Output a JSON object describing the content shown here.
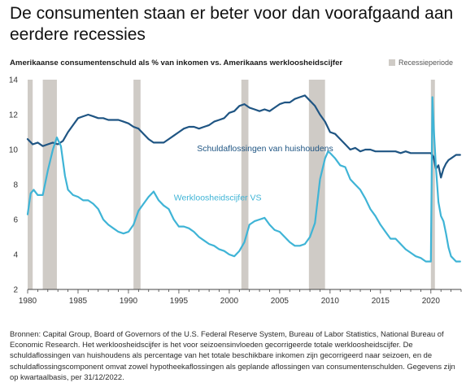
{
  "title": "De consumenten staan er beter voor dan voorafgaand aan eerdere recessies",
  "colors": {
    "debt_line": "#1f5583",
    "unemployment_line": "#3fb4d6",
    "recession": "#cfcbc6",
    "axis": "#444444"
  },
  "chart_data": {
    "type": "line",
    "title": "Amerikaanse consumentenschuld als % van inkomen vs. Amerikaans werkloosheidscijfer",
    "legend": [
      {
        "label": "Recessieperiode",
        "position": "top-right"
      }
    ],
    "xlim": [
      1980,
      2023
    ],
    "ylim": [
      2,
      14
    ],
    "x_ticks": [
      "1980",
      "1985",
      "1990",
      "1995",
      "2000",
      "2005",
      "2010",
      "2015",
      "2020"
    ],
    "y_ticks": [
      "2",
      "4",
      "6",
      "8",
      "10",
      "12",
      "14"
    ],
    "grid": false,
    "recessions": [
      [
        1980.0,
        1980.5
      ],
      [
        1981.5,
        1982.9
      ],
      [
        1990.5,
        1991.2
      ],
      [
        2001.2,
        2001.9
      ],
      [
        2007.9,
        2009.5
      ],
      [
        2020.0,
        2020.4
      ]
    ],
    "series": [
      {
        "name": "Schuldaflossingen van huishoudens",
        "label": "Schuldaflossingen van huishoudens",
        "x": [
          1980.0,
          1980.5,
          1981.0,
          1981.5,
          1982.0,
          1982.5,
          1983.0,
          1983.5,
          1984.0,
          1984.5,
          1985.0,
          1985.5,
          1986.0,
          1986.5,
          1987.0,
          1987.5,
          1988.0,
          1988.5,
          1989.0,
          1989.5,
          1990.0,
          1990.5,
          1991.0,
          1991.5,
          1992.0,
          1992.5,
          1993.0,
          1993.5,
          1994.0,
          1994.5,
          1995.0,
          1995.5,
          1996.0,
          1996.5,
          1997.0,
          1997.5,
          1998.0,
          1998.5,
          1999.0,
          1999.5,
          2000.0,
          2000.5,
          2001.0,
          2001.5,
          2002.0,
          2002.5,
          2003.0,
          2003.5,
          2004.0,
          2004.5,
          2005.0,
          2005.5,
          2006.0,
          2006.5,
          2007.0,
          2007.5,
          2008.0,
          2008.5,
          2009.0,
          2009.5,
          2010.0,
          2010.5,
          2011.0,
          2011.5,
          2012.0,
          2012.5,
          2013.0,
          2013.5,
          2014.0,
          2014.5,
          2015.0,
          2015.5,
          2016.0,
          2016.5,
          2017.0,
          2017.5,
          2018.0,
          2018.5,
          2019.0,
          2019.5,
          2020.0,
          2020.25,
          2020.5,
          2020.75,
          2021.0,
          2021.25,
          2021.5,
          2021.75,
          2022.0,
          2022.5,
          2022.9
        ],
        "values": [
          10.6,
          10.3,
          10.4,
          10.2,
          10.3,
          10.4,
          10.3,
          10.5,
          11.0,
          11.4,
          11.8,
          11.9,
          12.0,
          11.9,
          11.8,
          11.8,
          11.7,
          11.7,
          11.7,
          11.6,
          11.5,
          11.3,
          11.2,
          10.9,
          10.6,
          10.4,
          10.4,
          10.4,
          10.6,
          10.8,
          11.0,
          11.2,
          11.3,
          11.3,
          11.2,
          11.3,
          11.4,
          11.6,
          11.7,
          11.8,
          12.1,
          12.2,
          12.5,
          12.6,
          12.4,
          12.3,
          12.2,
          12.3,
          12.2,
          12.4,
          12.6,
          12.7,
          12.7,
          12.9,
          13.0,
          13.1,
          12.8,
          12.5,
          12.0,
          11.6,
          11.0,
          10.9,
          10.6,
          10.3,
          10.0,
          10.1,
          9.9,
          10.0,
          10.0,
          9.9,
          9.9,
          9.9,
          9.9,
          9.9,
          9.8,
          9.9,
          9.8,
          9.8,
          9.8,
          9.8,
          9.8,
          9.6,
          8.9,
          9.1,
          8.4,
          8.9,
          9.2,
          9.4,
          9.5,
          9.7,
          9.7
        ]
      },
      {
        "name": "Werkloosheidscijfer VS",
        "label": "Werkloosheidscijfer VS",
        "x": [
          1980.0,
          1980.3,
          1980.6,
          1981.0,
          1981.5,
          1982.0,
          1982.5,
          1982.9,
          1983.3,
          1983.7,
          1984.0,
          1984.5,
          1985.0,
          1985.5,
          1986.0,
          1986.5,
          1987.0,
          1987.5,
          1988.0,
          1988.5,
          1989.0,
          1989.5,
          1990.0,
          1990.5,
          1991.0,
          1991.5,
          1992.0,
          1992.5,
          1993.0,
          1993.5,
          1994.0,
          1994.5,
          1995.0,
          1995.5,
          1996.0,
          1996.5,
          1997.0,
          1997.5,
          1998.0,
          1998.5,
          1999.0,
          1999.5,
          2000.0,
          2000.5,
          2001.0,
          2001.5,
          2002.0,
          2002.5,
          2003.0,
          2003.5,
          2004.0,
          2004.5,
          2005.0,
          2005.5,
          2006.0,
          2006.5,
          2007.0,
          2007.5,
          2008.0,
          2008.5,
          2009.0,
          2009.5,
          2009.8,
          2010.0,
          2010.5,
          2011.0,
          2011.5,
          2012.0,
          2012.5,
          2013.0,
          2013.5,
          2014.0,
          2014.5,
          2015.0,
          2015.5,
          2016.0,
          2016.5,
          2017.0,
          2017.5,
          2018.0,
          2018.5,
          2019.0,
          2019.5,
          2020.0,
          2020.15,
          2020.3,
          2020.5,
          2020.75,
          2021.0,
          2021.25,
          2021.5,
          2021.75,
          2022.0,
          2022.5,
          2022.9
        ],
        "values": [
          6.3,
          7.5,
          7.7,
          7.4,
          7.4,
          8.8,
          10.0,
          10.7,
          10.2,
          8.5,
          7.7,
          7.4,
          7.3,
          7.1,
          7.1,
          6.9,
          6.6,
          6.0,
          5.7,
          5.5,
          5.3,
          5.2,
          5.3,
          5.7,
          6.5,
          6.9,
          7.3,
          7.6,
          7.1,
          6.8,
          6.6,
          6.0,
          5.6,
          5.6,
          5.5,
          5.3,
          5.0,
          4.8,
          4.6,
          4.5,
          4.3,
          4.2,
          4.0,
          3.9,
          4.2,
          4.7,
          5.7,
          5.9,
          6.0,
          6.1,
          5.7,
          5.4,
          5.3,
          5.0,
          4.7,
          4.5,
          4.5,
          4.6,
          5.0,
          5.8,
          8.3,
          9.5,
          9.9,
          9.8,
          9.5,
          9.1,
          9.0,
          8.3,
          8.0,
          7.7,
          7.2,
          6.6,
          6.2,
          5.7,
          5.3,
          4.9,
          4.9,
          4.6,
          4.3,
          4.1,
          3.9,
          3.8,
          3.6,
          3.6,
          13.0,
          11.1,
          9.0,
          7.0,
          6.2,
          5.9,
          5.2,
          4.4,
          3.9,
          3.6,
          3.6
        ]
      }
    ]
  },
  "source_note": "Bronnen: Capital Group, Board of Governors of the U.S. Federal Reserve System, Bureau of Labor Statistics, National Bureau of Economic Research. Het werkloosheidscijfer is het voor seizoensinvloeden gecorrigeerde totale werkloosheidscijfer. De schuldaflossingen van huishoudens als percentage van het totale beschikbare inkomen zijn gecorrigeerd naar seizoen, en de schuldaflossingscomponent omvat zowel hypotheekaflossingen als geplande aflossingen van consumentenschulden. Gegevens zijn op kwartaalbasis, per 31/12/2022."
}
